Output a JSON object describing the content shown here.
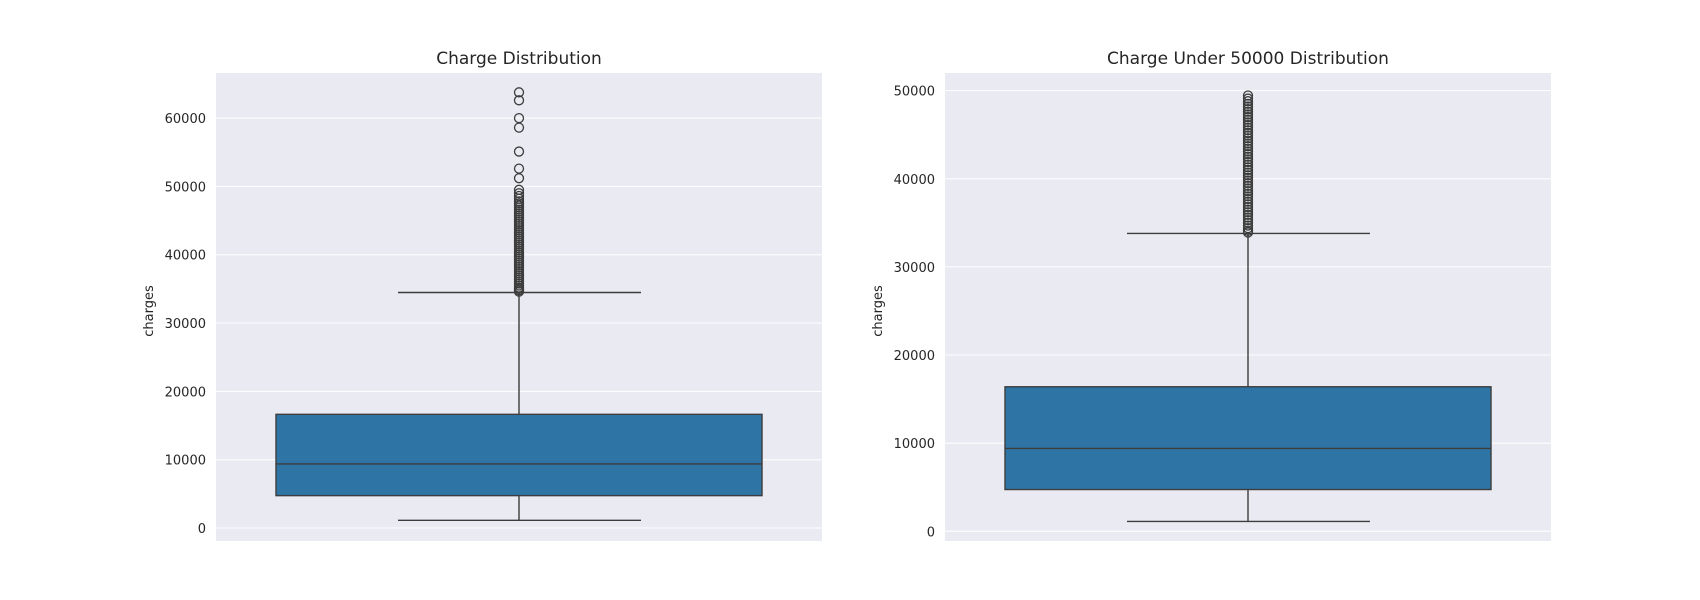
{
  "chart_data": [
    {
      "type": "box",
      "title": "Charge Distribution",
      "xlabel": "",
      "ylabel": "charges",
      "ylim": [
        -1900,
        66600
      ],
      "yticks": [
        0,
        10000,
        20000,
        30000,
        40000,
        50000,
        60000
      ],
      "grid": true,
      "box_color": "#2e75a6",
      "box": {
        "min": 1122,
        "q1": 4740,
        "median": 9382,
        "q3": 16640,
        "max": 34472
      },
      "outliers": [
        34600,
        34800,
        35000,
        35200,
        35500,
        35800,
        36100,
        36400,
        36700,
        37000,
        37300,
        37600,
        37900,
        38200,
        38500,
        38800,
        39100,
        39400,
        39700,
        40000,
        40300,
        40600,
        40900,
        41200,
        41500,
        41800,
        42100,
        42400,
        42700,
        43000,
        43300,
        43600,
        43900,
        44200,
        44500,
        44800,
        45100,
        45400,
        45700,
        46000,
        46300,
        46600,
        46900,
        47200,
        47500,
        47800,
        48200,
        48600,
        49000,
        49500,
        51200,
        52600,
        55100,
        58600,
        60000,
        62600,
        63770
      ]
    },
    {
      "type": "box",
      "title": "Charge Under 50000 Distribution",
      "xlabel": "",
      "ylabel": "charges",
      "ylim": [
        -1100,
        52000
      ],
      "yticks": [
        0,
        10000,
        20000,
        30000,
        40000,
        50000
      ],
      "grid": true,
      "box_color": "#2e75a6",
      "box": {
        "min": 1122,
        "q1": 4740,
        "median": 9400,
        "q3": 16400,
        "max": 33800
      },
      "outliers": [
        33900,
        34100,
        34400,
        34700,
        35000,
        35300,
        35600,
        35900,
        36200,
        36500,
        36800,
        37100,
        37400,
        37700,
        38000,
        38300,
        38600,
        38900,
        39200,
        39500,
        39800,
        40100,
        40400,
        40700,
        41000,
        41300,
        41600,
        41900,
        42200,
        42500,
        42800,
        43100,
        43400,
        43700,
        44000,
        44300,
        44600,
        44900,
        45200,
        45500,
        45800,
        46100,
        46400,
        46700,
        47000,
        47300,
        47600,
        47900,
        48200,
        48500,
        48800,
        49100,
        49450
      ]
    }
  ]
}
